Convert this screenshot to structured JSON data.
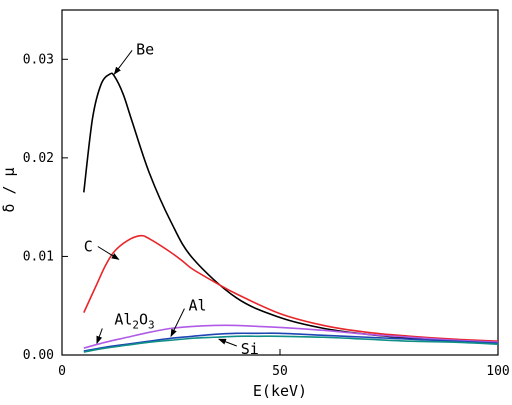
{
  "chart_data": {
    "type": "line",
    "xlabel": "E(keV)",
    "ylabel": "δ / μ",
    "xlim": [
      0,
      100
    ],
    "ylim": [
      0,
      0.035
    ],
    "x_ticks": [
      0,
      50,
      100
    ],
    "x_tick_labels": [
      "0",
      "50",
      "100"
    ],
    "y_ticks": [
      0,
      0.01,
      0.02,
      0.03
    ],
    "y_tick_labels": [
      "0.00",
      "0.01",
      "0.02",
      "0.03"
    ],
    "grid": false,
    "legend": "inline labels with arrows",
    "series": [
      {
        "name": "Be",
        "color": "#000000",
        "x": [
          5,
          7,
          9,
          11,
          12,
          14,
          16,
          20,
          25,
          30,
          40,
          50,
          60,
          70,
          80,
          90,
          100
        ],
        "y": [
          0.0165,
          0.024,
          0.0275,
          0.0285,
          0.0283,
          0.0265,
          0.0238,
          0.0185,
          0.0135,
          0.0098,
          0.0058,
          0.0038,
          0.0027,
          0.0021,
          0.0017,
          0.0014,
          0.0012
        ],
        "label": "Be",
        "label_at": [
          17,
          0.0305
        ],
        "arrow_to": [
          12,
          0.0285
        ]
      },
      {
        "name": "C",
        "color": "#e8262a",
        "x": [
          5,
          8,
          10,
          12,
          15,
          18,
          20,
          25,
          28,
          30,
          35,
          40,
          50,
          60,
          70,
          80,
          90,
          100
        ],
        "y": [
          0.0043,
          0.0072,
          0.0091,
          0.0105,
          0.0116,
          0.0121,
          0.0118,
          0.0104,
          0.0094,
          0.0087,
          0.0074,
          0.0062,
          0.0042,
          0.003,
          0.0023,
          0.0019,
          0.0016,
          0.0014
        ],
        "label": "C",
        "label_at": [
          5,
          0.0105
        ],
        "arrow_to": [
          13,
          0.0097
        ]
      },
      {
        "name": "Al2O3",
        "color": "#b05ae6",
        "x": [
          5,
          10,
          15,
          20,
          25,
          30,
          35,
          40,
          45,
          50,
          60,
          70,
          80,
          90,
          100
        ],
        "y": [
          0.0007,
          0.0013,
          0.0018,
          0.0023,
          0.0027,
          0.0029,
          0.003,
          0.003,
          0.0029,
          0.0028,
          0.0025,
          0.0021,
          0.0018,
          0.0015,
          0.0013
        ],
        "label_main": "Al",
        "label_sub1": "2",
        "label_mid": "O",
        "label_sub2": "3",
        "label_at": [
          12,
          0.0031
        ],
        "arrow_to": [
          8,
          0.0012
        ]
      },
      {
        "name": "Al",
        "color": "#1f45b5",
        "x": [
          5,
          10,
          15,
          20,
          25,
          30,
          35,
          40,
          45,
          50,
          60,
          70,
          80,
          90,
          100
        ],
        "y": [
          0.0004,
          0.0008,
          0.0011,
          0.0014,
          0.0017,
          0.0019,
          0.0021,
          0.0022,
          0.0022,
          0.0022,
          0.002,
          0.0018,
          0.0016,
          0.0014,
          0.0012
        ],
        "label": "Al",
        "label_at": [
          29,
          0.0045
        ],
        "arrow_to": [
          25,
          0.0019
        ]
      },
      {
        "name": "Si",
        "color": "#0f8f86",
        "x": [
          5,
          10,
          15,
          20,
          25,
          30,
          35,
          40,
          45,
          50,
          60,
          70,
          80,
          90,
          100
        ],
        "y": [
          0.0003,
          0.0007,
          0.001,
          0.0013,
          0.0015,
          0.0017,
          0.0018,
          0.0019,
          0.0019,
          0.0019,
          0.0018,
          0.0016,
          0.0014,
          0.0013,
          0.0011
        ],
        "label": "Si",
        "label_at": [
          41,
          0.0001
        ],
        "arrow_to": [
          36,
          0.0016
        ]
      }
    ]
  }
}
